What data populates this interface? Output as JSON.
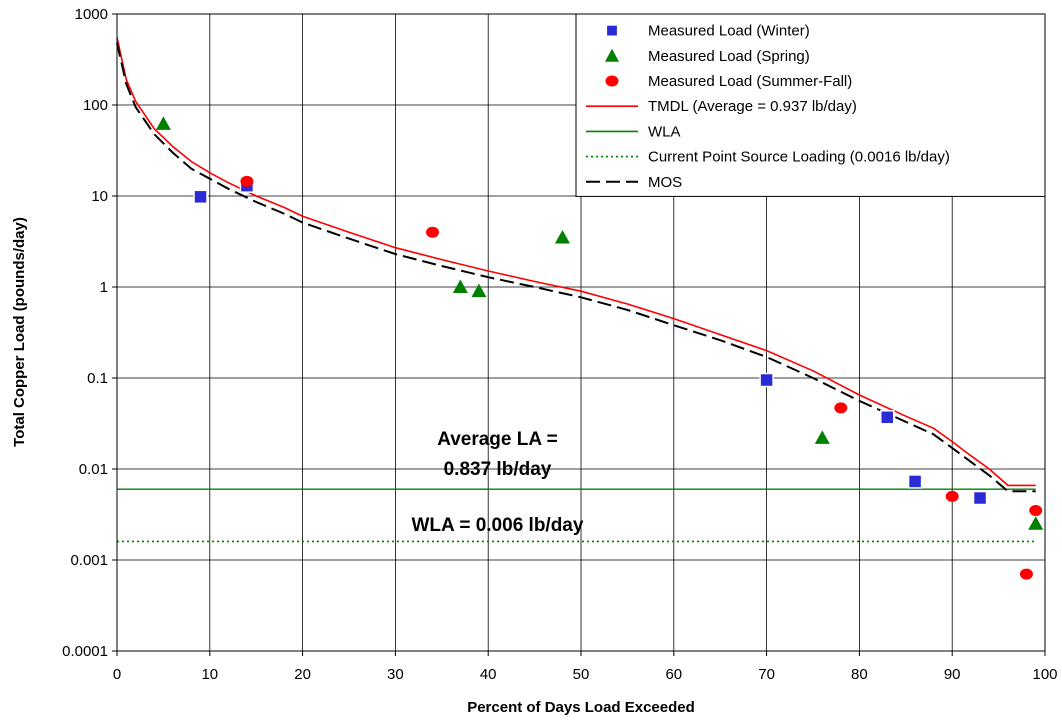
{
  "chart_data": {
    "type": "scatter",
    "xlabel": "Percent of Days Load Exceeded",
    "ylabel": "Total Copper Load (pounds/day)",
    "xlim": [
      0,
      100
    ],
    "ylim": [
      0.0001,
      1000
    ],
    "yscale": "log",
    "grid": true,
    "legend_position": "top-right",
    "x_ticks": [
      0,
      10,
      20,
      30,
      40,
      50,
      60,
      70,
      80,
      90,
      100
    ],
    "x_tick_labels": [
      "0",
      "10",
      "20",
      "30",
      "40",
      "50",
      "60",
      "70",
      "80",
      "90",
      "100"
    ],
    "y_ticks": [
      0.0001,
      0.001,
      0.01,
      0.1,
      1,
      10,
      100,
      1000
    ],
    "y_tick_labels": [
      "0.0001",
      "0.001",
      "0.01",
      "0.1",
      "1",
      "10",
      "100",
      "1000"
    ],
    "series": [
      {
        "name": "Measured Load (Winter)",
        "kind": "points",
        "marker": "square",
        "color": "#2b2bd6",
        "points": [
          [
            9,
            9.8
          ],
          [
            14,
            13
          ],
          [
            70,
            0.095
          ],
          [
            83,
            0.037
          ],
          [
            86,
            0.0073
          ],
          [
            93,
            0.0048
          ]
        ]
      },
      {
        "name": "Measured Load (Spring)",
        "kind": "points",
        "marker": "triangle",
        "color": "#008000",
        "points": [
          [
            5,
            62
          ],
          [
            37,
            1.0
          ],
          [
            39,
            0.9
          ],
          [
            48,
            3.5
          ],
          [
            76,
            0.022
          ],
          [
            99,
            0.0025
          ]
        ]
      },
      {
        "name": "Measured Load (Summer-Fall)",
        "kind": "points",
        "marker": "circle",
        "color": "#ff0000",
        "points": [
          [
            14,
            14.5
          ],
          [
            34,
            4.0
          ],
          [
            78,
            0.047
          ],
          [
            90,
            0.005
          ],
          [
            98,
            0.0007
          ],
          [
            99,
            0.0035
          ]
        ]
      },
      {
        "name": "TMDL (Average = 0.937 lb/day)",
        "kind": "line",
        "dash": "solid",
        "color": "#ff0000",
        "points": [
          [
            0,
            550
          ],
          [
            1,
            190
          ],
          [
            2,
            110
          ],
          [
            4,
            55
          ],
          [
            6,
            35
          ],
          [
            8,
            24
          ],
          [
            10,
            18
          ],
          [
            12,
            14
          ],
          [
            15,
            10
          ],
          [
            18,
            7.5
          ],
          [
            20,
            6
          ],
          [
            25,
            4
          ],
          [
            30,
            2.7
          ],
          [
            35,
            2
          ],
          [
            40,
            1.5
          ],
          [
            45,
            1.15
          ],
          [
            50,
            0.9
          ],
          [
            55,
            0.65
          ],
          [
            60,
            0.45
          ],
          [
            65,
            0.3
          ],
          [
            70,
            0.2
          ],
          [
            75,
            0.12
          ],
          [
            80,
            0.065
          ],
          [
            85,
            0.038
          ],
          [
            88,
            0.028
          ],
          [
            90,
            0.02
          ],
          [
            92,
            0.014
          ],
          [
            94,
            0.01
          ],
          [
            96,
            0.0066
          ],
          [
            99,
            0.0066
          ]
        ]
      },
      {
        "name": "WLA",
        "kind": "hline",
        "dash": "solid",
        "color": "#008000",
        "y": 0.006,
        "x_range": [
          0,
          99
        ]
      },
      {
        "name": "Current Point Source Loading (0.0016 lb/day)",
        "kind": "hline",
        "dash": "dotted",
        "color": "#008000",
        "y": 0.0016,
        "x_range": [
          0,
          99
        ]
      },
      {
        "name": "MOS",
        "kind": "line",
        "dash": "dashed",
        "color": "#000000",
        "points": [
          [
            0,
            480
          ],
          [
            1,
            170
          ],
          [
            2,
            95
          ],
          [
            4,
            48
          ],
          [
            6,
            30
          ],
          [
            8,
            20
          ],
          [
            10,
            15.5
          ],
          [
            12,
            12
          ],
          [
            15,
            8.6
          ],
          [
            18,
            6.4
          ],
          [
            20,
            5.1
          ],
          [
            25,
            3.4
          ],
          [
            30,
            2.3
          ],
          [
            35,
            1.7
          ],
          [
            40,
            1.28
          ],
          [
            45,
            1.0
          ],
          [
            50,
            0.77
          ],
          [
            55,
            0.56
          ],
          [
            60,
            0.38
          ],
          [
            65,
            0.26
          ],
          [
            70,
            0.17
          ],
          [
            75,
            0.1
          ],
          [
            80,
            0.056
          ],
          [
            85,
            0.033
          ],
          [
            88,
            0.024
          ],
          [
            90,
            0.017
          ],
          [
            92,
            0.012
          ],
          [
            94,
            0.0085
          ],
          [
            96,
            0.0057
          ],
          [
            99,
            0.0057
          ]
        ]
      }
    ],
    "annotations": [
      {
        "lines": [
          "Average LA =",
          "0.837 lb/day"
        ],
        "x": 41,
        "y": 0.015
      },
      {
        "lines": [
          "WLA = 0.006 lb/day"
        ],
        "x": 41,
        "y": 0.0025
      }
    ]
  }
}
